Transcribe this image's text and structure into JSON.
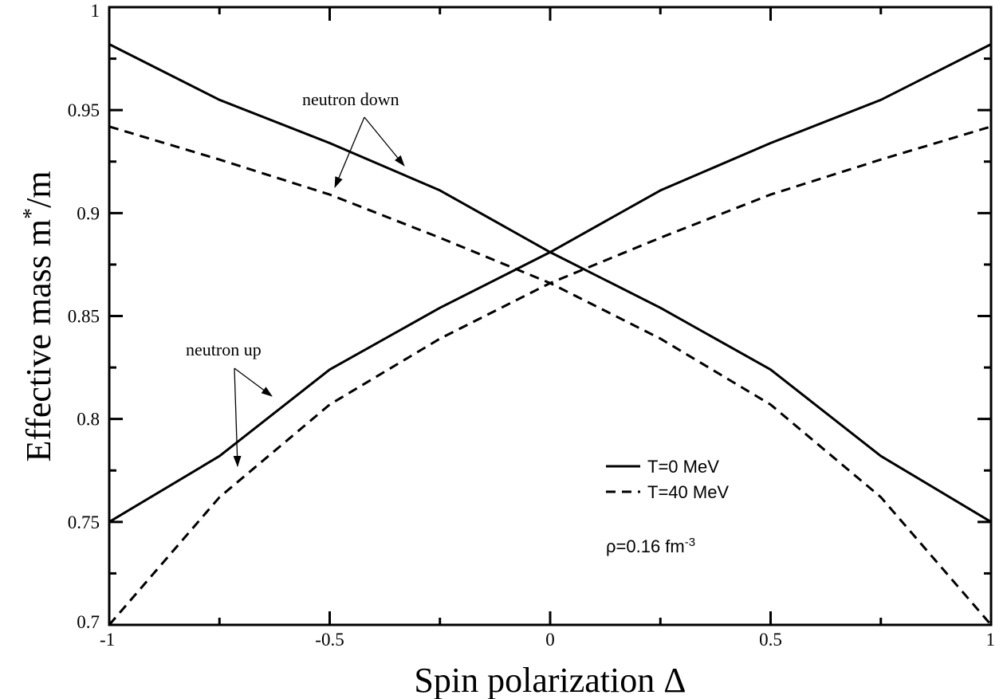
{
  "chart_data": {
    "type": "line",
    "title": "",
    "xlabel": "Spin polarization Δ",
    "ylabel_main": "Effective mass m",
    "ylabel_sup": "*",
    "ylabel_tail": "/m",
    "xlim": [
      -1,
      1
    ],
    "ylim": [
      0.7,
      1.0
    ],
    "xticks": [
      -1,
      -0.5,
      0,
      0.5,
      1
    ],
    "xtick_labels": [
      "-1",
      "-0.5",
      "0",
      "0.5",
      "1"
    ],
    "yticks": [
      0.7,
      0.75,
      0.8,
      0.85,
      0.9,
      0.95,
      1.0
    ],
    "ytick_labels": [
      "0.7",
      "0.75",
      "0.8",
      "0.85",
      "0.9",
      "0.95",
      "1"
    ],
    "grid": false,
    "legend_position": "bottom-right",
    "x": [
      -1,
      -0.75,
      -0.5,
      -0.25,
      0,
      0.25,
      0.5,
      0.75,
      1
    ],
    "series": [
      {
        "name": "T=0 MeV",
        "branch": "neutron up",
        "style": "solid",
        "values": [
          0.75,
          0.782,
          0.824,
          0.854,
          0.881,
          0.911,
          0.934,
          0.955,
          0.982
        ]
      },
      {
        "name": "T=0 MeV",
        "branch": "neutron down",
        "style": "solid",
        "values": [
          0.982,
          0.955,
          0.934,
          0.911,
          0.881,
          0.854,
          0.824,
          0.782,
          0.75
        ]
      },
      {
        "name": "T=40 MeV",
        "branch": "neutron up",
        "style": "dashed",
        "values": [
          0.7,
          0.762,
          0.807,
          0.839,
          0.866,
          0.888,
          0.909,
          0.926,
          0.942
        ]
      },
      {
        "name": "T=40 MeV",
        "branch": "neutron down",
        "style": "dashed",
        "values": [
          0.942,
          0.926,
          0.909,
          0.888,
          0.866,
          0.839,
          0.807,
          0.762,
          0.7
        ]
      }
    ],
    "legend": [
      {
        "label": "T=0 MeV",
        "style": "solid"
      },
      {
        "label": "T=40 MeV",
        "style": "dashed"
      }
    ],
    "annotations": {
      "neutron_down": "neutron down",
      "neutron_up": "neutron up",
      "rho_main": "ρ=0.16 fm",
      "rho_sup": "-3"
    }
  }
}
